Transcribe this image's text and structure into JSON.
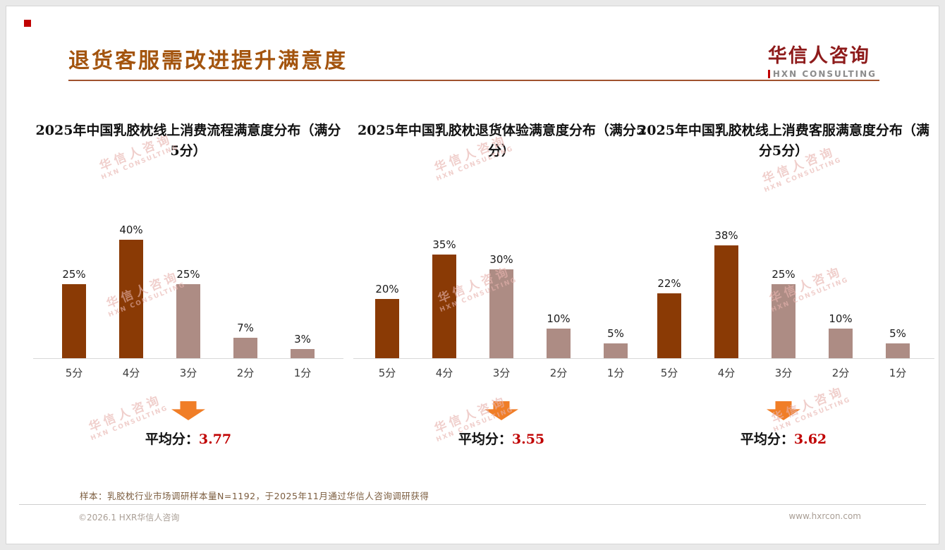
{
  "page": {
    "title": "退货客服需改进提升满意度",
    "logo_text": "华信人咨询",
    "logo_sub": "HXN CONSULTING",
    "footnote": "样本：乳胶枕行业市场调研样本量N=1192，于2025年11月通过华信人咨询调研获得",
    "footer_left": "©2026.1 HXR华信人咨询",
    "footer_right": "www.hxrcon.com",
    "watermark_line1": "华信人咨询",
    "watermark_line2": "HXN CONSULTING"
  },
  "colors": {
    "title": "#a3540e",
    "bar_primary": "#8a3a05",
    "bar_secondary": "#ad8c84",
    "arrow": "#f07e27",
    "average_value": "#c00000"
  },
  "chart_data": [
    {
      "type": "bar",
      "title": "2025年中国乳胶枕线上消费流程满意度分布（满分5分）",
      "categories": [
        "5分",
        "4分",
        "3分",
        "2分",
        "1分"
      ],
      "values": [
        25,
        40,
        25,
        7,
        3
      ],
      "labels": [
        "25%",
        "40%",
        "25%",
        "7%",
        "3%"
      ],
      "ylim": [
        0,
        45
      ],
      "average_label": "平均分：",
      "average": "3.77"
    },
    {
      "type": "bar",
      "title": "2025年中国乳胶枕退货体验满意度分布（满分5分）",
      "categories": [
        "5分",
        "4分",
        "3分",
        "2分",
        "1分"
      ],
      "values": [
        20,
        35,
        30,
        10,
        5
      ],
      "labels": [
        "20%",
        "35%",
        "30%",
        "10%",
        "5%"
      ],
      "ylim": [
        0,
        45
      ],
      "average_label": "平均分：",
      "average": "3.55"
    },
    {
      "type": "bar",
      "title": "2025年中国乳胶枕线上消费客服满意度分布（满分5分）",
      "categories": [
        "5分",
        "4分",
        "3分",
        "2分",
        "1分"
      ],
      "values": [
        22,
        38,
        25,
        10,
        5
      ],
      "labels": [
        "22%",
        "38%",
        "25%",
        "10%",
        "5%"
      ],
      "ylim": [
        0,
        45
      ],
      "average_label": "平均分：",
      "average": "3.62"
    }
  ]
}
